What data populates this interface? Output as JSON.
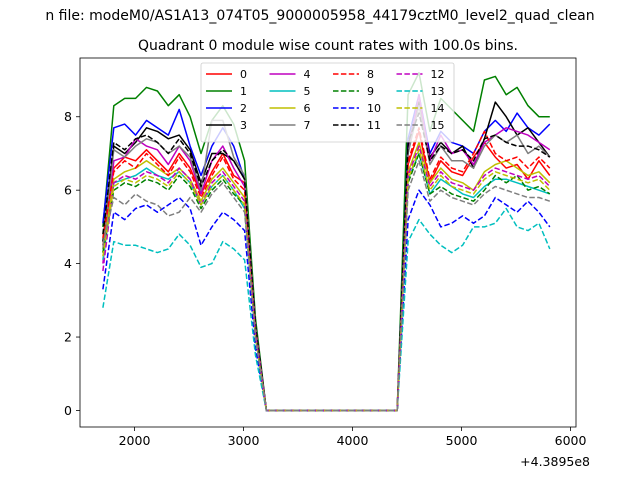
{
  "figure": {
    "suptitle": "n file: modeM0/AS1A13_074T05_9000005958_44179cztM0_level2_quad_clean",
    "title": "Quadrant 0 module wise count rates with 100.0s bins.",
    "offset_label": "+4.3895e8"
  },
  "chart_data": {
    "type": "line",
    "title": "Quadrant 0 module wise count rates with 100.0s bins.",
    "xlabel": "",
    "ylabel": "",
    "x_offset": 438950000,
    "xlim": [
      1500,
      6050
    ],
    "ylim": [
      -0.45,
      9.6
    ],
    "xticks": [
      2000,
      3000,
      4000,
      5000,
      6000
    ],
    "yticks": [
      0,
      2,
      4,
      6,
      8
    ],
    "grid": false,
    "legend": {
      "placement": "upper center",
      "columns": 4
    },
    "x": [
      1710,
      1810,
      1910,
      2010,
      2110,
      2210,
      2310,
      2410,
      2510,
      2610,
      2710,
      2810,
      2910,
      3010,
      3110,
      3210,
      3310,
      3410,
      3510,
      3610,
      3710,
      3810,
      3910,
      4010,
      4110,
      4210,
      4310,
      4410,
      4510,
      4610,
      4710,
      4810,
      4910,
      5010,
      5110,
      5210,
      5310,
      5410,
      5510,
      5610,
      5710,
      5810
    ],
    "series": [
      {
        "name": "0",
        "color": "#ff0000",
        "dash": "solid",
        "values": [
          4.5,
          6.6,
          6.9,
          6.8,
          7.1,
          6.8,
          6.5,
          7.0,
          6.6,
          5.9,
          6.5,
          7.0,
          6.4,
          6.2,
          2.2,
          0,
          0,
          0,
          0,
          0,
          0,
          0,
          0,
          0,
          0,
          0,
          0,
          0,
          6.7,
          7.6,
          6.2,
          6.8,
          6.5,
          6.4,
          6.9,
          7.3,
          6.9,
          6.6,
          6.7,
          6.3,
          6.8,
          6.4
        ]
      },
      {
        "name": "1",
        "color": "#008000",
        "dash": "solid",
        "values": [
          5.0,
          8.3,
          8.5,
          8.5,
          8.8,
          8.7,
          8.3,
          8.6,
          8.0,
          7.0,
          7.9,
          8.3,
          7.8,
          6.8,
          2.5,
          0,
          0,
          0,
          0,
          0,
          0,
          0,
          0,
          0,
          0,
          0,
          0,
          0,
          8.6,
          9.2,
          7.6,
          8.5,
          8.2,
          7.9,
          7.6,
          9.0,
          9.1,
          8.6,
          8.8,
          8.3,
          8.0,
          8.0
        ]
      },
      {
        "name": "2",
        "color": "#0000ff",
        "dash": "solid",
        "values": [
          5.1,
          7.7,
          7.8,
          7.5,
          7.9,
          7.7,
          7.5,
          8.2,
          7.2,
          6.4,
          7.2,
          7.7,
          7.2,
          6.3,
          2.3,
          0,
          0,
          0,
          0,
          0,
          0,
          0,
          0,
          0,
          0,
          0,
          0,
          0,
          7.4,
          8.6,
          7.0,
          7.6,
          7.3,
          7.2,
          7.0,
          7.6,
          7.9,
          7.6,
          8.1,
          7.7,
          7.5,
          7.8
        ]
      },
      {
        "name": "3",
        "color": "#000000",
        "dash": "solid",
        "values": [
          4.6,
          7.2,
          7.0,
          7.3,
          7.7,
          7.6,
          7.4,
          7.5,
          7.1,
          6.2,
          7.0,
          7.0,
          6.8,
          6.3,
          2.3,
          0,
          0,
          0,
          0,
          0,
          0,
          0,
          0,
          0,
          0,
          0,
          0,
          0,
          7.2,
          8.4,
          6.9,
          7.3,
          7.0,
          7.2,
          6.6,
          7.4,
          8.4,
          8.0,
          7.5,
          7.7,
          7.3,
          6.9
        ]
      },
      {
        "name": "4",
        "color": "#bf00bf",
        "dash": "solid",
        "values": [
          4.0,
          6.8,
          6.9,
          7.4,
          7.2,
          7.1,
          6.7,
          7.2,
          6.8,
          5.9,
          6.8,
          7.2,
          6.6,
          6.1,
          2.2,
          0,
          0,
          0,
          0,
          0,
          0,
          0,
          0,
          0,
          0,
          0,
          0,
          0,
          7.0,
          8.6,
          6.8,
          7.5,
          7.0,
          7.1,
          6.7,
          7.3,
          7.5,
          7.7,
          7.6,
          7.5,
          7.3,
          7.1
        ]
      },
      {
        "name": "5",
        "color": "#00bfbf",
        "dash": "solid",
        "values": [
          4.1,
          6.2,
          6.3,
          6.4,
          6.6,
          6.4,
          6.3,
          6.5,
          6.2,
          5.6,
          6.1,
          6.4,
          6.0,
          5.5,
          2.0,
          0,
          0,
          0,
          0,
          0,
          0,
          0,
          0,
          0,
          0,
          0,
          0,
          0,
          6.3,
          7.0,
          5.9,
          6.3,
          6.1,
          5.9,
          5.8,
          6.1,
          6.3,
          6.3,
          6.2,
          6.1,
          6.0,
          5.9
        ]
      },
      {
        "name": "6",
        "color": "#bfbf00",
        "dash": "solid",
        "values": [
          4.3,
          6.3,
          6.5,
          6.6,
          6.8,
          6.6,
          6.4,
          6.6,
          6.3,
          5.7,
          6.3,
          6.6,
          6.2,
          5.8,
          2.1,
          0,
          0,
          0,
          0,
          0,
          0,
          0,
          0,
          0,
          0,
          0,
          0,
          0,
          6.5,
          7.3,
          6.2,
          6.6,
          6.3,
          6.2,
          6.0,
          6.5,
          6.7,
          6.8,
          6.6,
          6.4,
          6.5,
          6.2
        ]
      },
      {
        "name": "7",
        "color": "#7f7f7f",
        "dash": "solid",
        "values": [
          4.4,
          7.1,
          6.9,
          7.2,
          7.4,
          7.3,
          7.0,
          7.2,
          6.9,
          6.0,
          7.9,
          7.9,
          6.9,
          6.4,
          2.3,
          0,
          0,
          0,
          0,
          0,
          0,
          0,
          0,
          0,
          0,
          0,
          0,
          0,
          7.0,
          8.3,
          6.7,
          7.2,
          6.8,
          6.8,
          6.6,
          7.2,
          7.5,
          7.3,
          7.5,
          7.0,
          7.2,
          6.9
        ]
      },
      {
        "name": "8",
        "color": "#ff0000",
        "dash": "dashed",
        "values": [
          4.7,
          6.5,
          6.8,
          6.6,
          7.0,
          6.7,
          6.4,
          6.9,
          6.5,
          5.8,
          6.4,
          6.9,
          6.3,
          6.0,
          2.2,
          0,
          0,
          0,
          0,
          0,
          0,
          0,
          0,
          0,
          0,
          0,
          0,
          0,
          6.8,
          7.7,
          6.3,
          6.9,
          6.6,
          6.5,
          7.0,
          7.6,
          7.0,
          6.8,
          6.9,
          6.6,
          6.9,
          6.6
        ]
      },
      {
        "name": "9",
        "color": "#008000",
        "dash": "dashed",
        "values": [
          4.3,
          6.0,
          6.2,
          6.1,
          6.3,
          6.2,
          6.0,
          6.4,
          6.1,
          5.5,
          6.0,
          6.3,
          5.9,
          5.6,
          2.0,
          0,
          0,
          0,
          0,
          0,
          0,
          0,
          0,
          0,
          0,
          0,
          0,
          0,
          6.2,
          7.0,
          5.9,
          6.1,
          5.9,
          5.8,
          5.7,
          6.0,
          6.4,
          6.2,
          6.4,
          6.0,
          6.1,
          5.9
        ]
      },
      {
        "name": "10",
        "color": "#0000ff",
        "dash": "dashed",
        "values": [
          3.3,
          5.4,
          5.2,
          5.5,
          5.6,
          5.4,
          5.6,
          5.8,
          5.5,
          4.5,
          5.0,
          5.4,
          5.2,
          4.9,
          1.7,
          0,
          0,
          0,
          0,
          0,
          0,
          0,
          0,
          0,
          0,
          0,
          0,
          0,
          5.2,
          6.0,
          5.6,
          5.0,
          5.1,
          5.3,
          5.1,
          5.3,
          5.8,
          5.6,
          5.4,
          5.7,
          5.4,
          5.0
        ]
      },
      {
        "name": "11",
        "color": "#000000",
        "dash": "dashed",
        "values": [
          4.8,
          7.3,
          7.1,
          7.4,
          7.5,
          7.3,
          7.0,
          7.4,
          7.0,
          6.1,
          6.8,
          7.1,
          6.8,
          6.3,
          2.3,
          0,
          0,
          0,
          0,
          0,
          0,
          0,
          0,
          0,
          0,
          0,
          0,
          0,
          7.3,
          8.1,
          6.8,
          7.2,
          7.0,
          7.1,
          6.8,
          7.4,
          7.5,
          7.3,
          7.2,
          7.2,
          7.1,
          6.9
        ]
      },
      {
        "name": "12",
        "color": "#bf00bf",
        "dash": "dashed",
        "values": [
          3.8,
          6.2,
          6.4,
          6.3,
          6.5,
          6.4,
          6.2,
          6.6,
          6.3,
          5.6,
          6.2,
          6.5,
          6.1,
          5.7,
          2.1,
          0,
          0,
          0,
          0,
          0,
          0,
          0,
          0,
          0,
          0,
          0,
          0,
          0,
          6.4,
          7.2,
          6.1,
          6.5,
          6.2,
          6.1,
          6.0,
          6.4,
          6.6,
          6.5,
          6.4,
          6.3,
          6.4,
          6.1
        ]
      },
      {
        "name": "13",
        "color": "#00bfbf",
        "dash": "dashed",
        "values": [
          2.8,
          4.6,
          4.5,
          4.5,
          4.4,
          4.3,
          4.4,
          4.8,
          4.5,
          3.9,
          4.0,
          4.6,
          4.4,
          4.1,
          1.5,
          0,
          0,
          0,
          0,
          0,
          0,
          0,
          0,
          0,
          0,
          0,
          0,
          0,
          4.6,
          5.2,
          4.8,
          4.5,
          4.3,
          4.5,
          5.0,
          5.0,
          5.1,
          5.5,
          5.0,
          4.9,
          5.1,
          4.4
        ]
      },
      {
        "name": "14",
        "color": "#bfbf00",
        "dash": "dashed",
        "values": [
          4.2,
          6.1,
          6.3,
          6.2,
          6.4,
          6.3,
          6.1,
          6.5,
          6.2,
          5.6,
          6.1,
          6.4,
          6.0,
          5.6,
          2.0,
          0,
          0,
          0,
          0,
          0,
          0,
          0,
          0,
          0,
          0,
          0,
          0,
          0,
          6.3,
          7.1,
          6.0,
          6.4,
          6.1,
          6.0,
          5.9,
          6.3,
          6.5,
          6.4,
          6.3,
          6.2,
          6.3,
          6.0
        ]
      },
      {
        "name": "15",
        "color": "#7f7f7f",
        "dash": "dashed",
        "values": [
          4.5,
          5.8,
          5.6,
          5.9,
          5.7,
          5.6,
          5.3,
          5.4,
          5.8,
          5.4,
          5.9,
          6.2,
          5.8,
          5.4,
          2.0,
          0,
          0,
          0,
          0,
          0,
          0,
          0,
          0,
          0,
          0,
          0,
          0,
          0,
          6.0,
          6.8,
          5.7,
          6.0,
          5.8,
          5.7,
          5.6,
          5.9,
          6.1,
          6.0,
          5.9,
          5.8,
          5.8,
          5.7
        ]
      }
    ]
  }
}
